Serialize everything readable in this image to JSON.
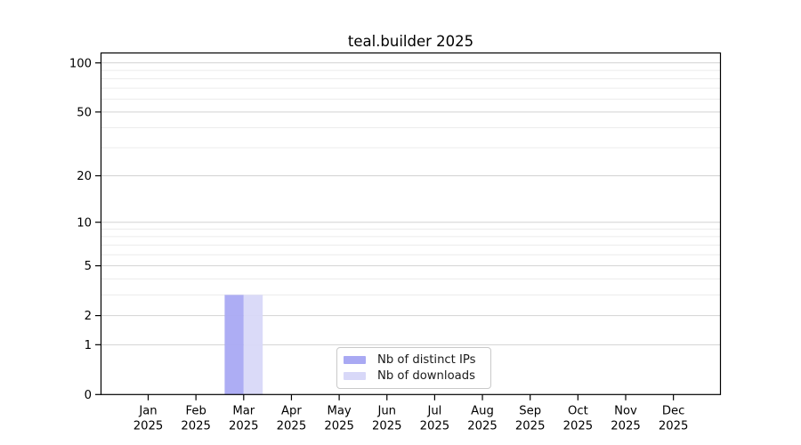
{
  "title": "teal.builder 2025",
  "chart_data": {
    "type": "bar",
    "title": "teal.builder 2025",
    "categories": [
      "Jan",
      "Feb",
      "Mar",
      "Apr",
      "May",
      "Jun",
      "Jul",
      "Aug",
      "Sep",
      "Oct",
      "Nov",
      "Dec"
    ],
    "x_year": "2025",
    "series": [
      {
        "name": "Nb of distinct IPs",
        "color": "#a9a9f3",
        "values": [
          0,
          0,
          3,
          0,
          0,
          0,
          0,
          0,
          0,
          0,
          0,
          0
        ]
      },
      {
        "name": "Nb of downloads",
        "color": "#d8d8f8",
        "values": [
          0,
          0,
          3,
          0,
          0,
          0,
          0,
          0,
          0,
          0,
          0,
          0
        ]
      }
    ],
    "xlabel": "",
    "ylabel": "",
    "ylim": [
      0,
      115
    ],
    "yscale": "log10(1+v)",
    "yticks_major": [
      0,
      1,
      2,
      5,
      10,
      20,
      50,
      100
    ],
    "yticks_minor": [
      3,
      4,
      6,
      7,
      8,
      9,
      30,
      40,
      60,
      70,
      80,
      90
    ],
    "grid": "horizontal",
    "legend_position": "inside-bottom-center"
  },
  "colors": {
    "background": "#ffffff",
    "axis": "#000000",
    "grid_major": "#d2d2d2",
    "grid_minor": "#ececec",
    "legend_border": "#c9c9c9",
    "title_text": "#000000",
    "bar_distinct_ips": "#a9a9f3",
    "bar_downloads": "#d8d8f8"
  }
}
